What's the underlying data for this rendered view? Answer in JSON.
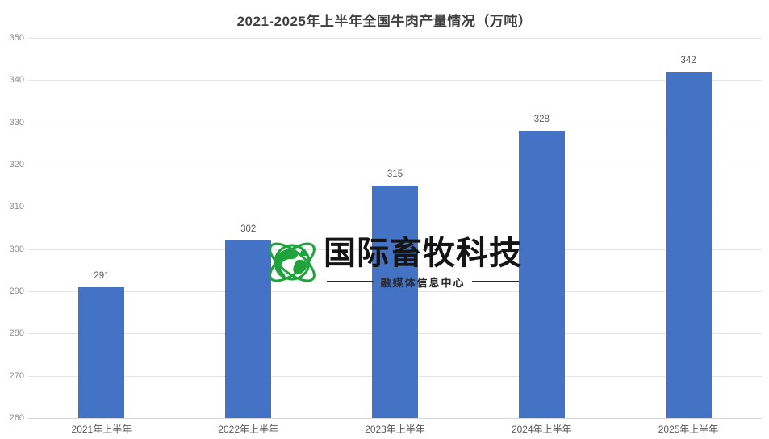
{
  "title": "2021-2025年上半年全国牛肉产量情况（万吨）",
  "chart_data": {
    "type": "bar",
    "title": "2021-2025年上半年全国牛肉产量情况（万吨）",
    "categories": [
      "2021年上半年",
      "2022年上半年",
      "2023年上半年",
      "2024年上半年",
      "2025年上半年"
    ],
    "values": [
      291,
      302,
      315,
      328,
      342
    ],
    "value_labels": [
      "291",
      "302",
      "315",
      "328",
      "342"
    ],
    "xlabel": "",
    "ylabel": "",
    "ylim": [
      260,
      350
    ],
    "yticks": [
      350,
      340,
      330,
      320,
      310,
      300,
      290,
      280,
      270,
      260
    ],
    "grid": true,
    "legend": false,
    "bar_color": "#4472C4"
  },
  "watermark": {
    "logo_icon": "globe-orbits-icon",
    "brand": "国际畜牧科技",
    "subtitle": "融媒体信息中心",
    "logo_color": "#1fa33c",
    "brand_color": "#141414"
  },
  "colors": {
    "bar": "#4472C4",
    "gridline": "#e4e4e4",
    "axis_tick_text": "#8c8c8c",
    "label_text": "#595959",
    "title_text": "#3f3f3f",
    "background": "#ffffff"
  }
}
